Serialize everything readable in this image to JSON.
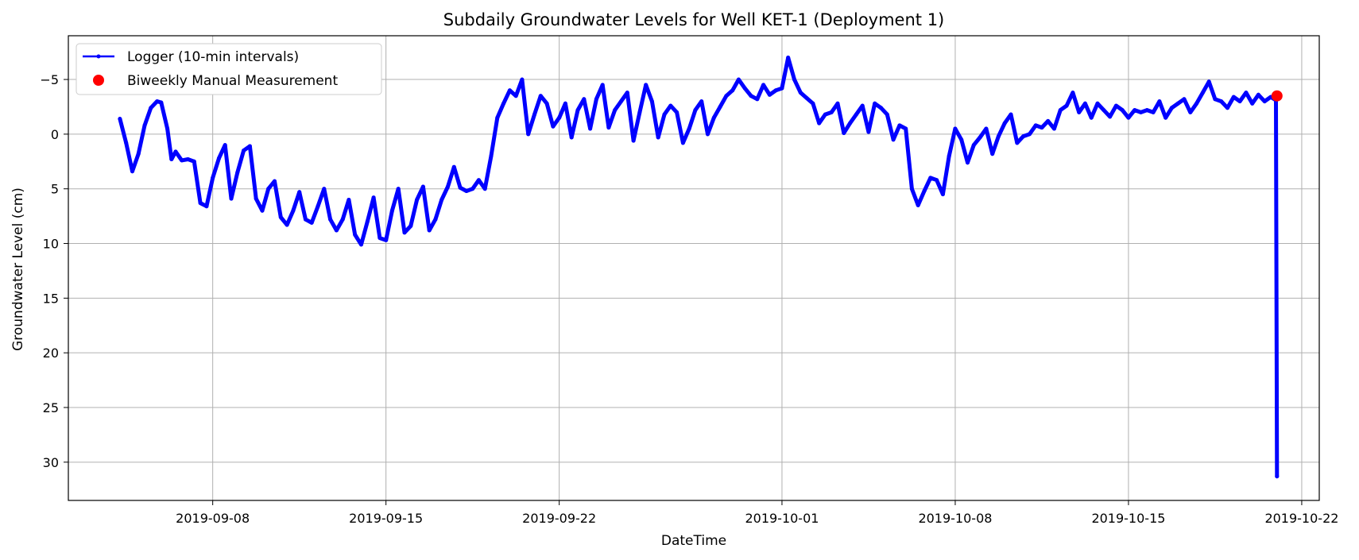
{
  "chart_data": {
    "type": "line",
    "title": "Subdaily Groundwater Levels for Well KET-1 (Deployment 1)",
    "xlabel": "DateTime",
    "ylabel": "Groundwater Level (cm)",
    "y_inverted": true,
    "ylim": [
      33.5,
      -9
    ],
    "xlim": [
      "2019-09-02T04:00",
      "2019-10-22T17:00"
    ],
    "x_ticks": [
      "2019-09-08",
      "2019-09-15",
      "2019-09-22",
      "2019-10-01",
      "2019-10-08",
      "2019-10-15",
      "2019-10-22"
    ],
    "y_ticks": [
      -5,
      0,
      5,
      10,
      15,
      20,
      25,
      30
    ],
    "grid": true,
    "legend_position": "top-left",
    "colors": {
      "logger": "#0000ff",
      "manual": "#ff0000"
    },
    "series": [
      {
        "name": "Logger (10-min intervals)",
        "style": "line-with-dot-markers",
        "color": "#0000ff",
        "points": [
          [
            "2019-09-04T06:00",
            -1.4
          ],
          [
            "2019-09-04T12:00",
            0.8
          ],
          [
            "2019-09-04T18:00",
            3.4
          ],
          [
            "2019-09-05T00:00",
            1.8
          ],
          [
            "2019-09-05T06:00",
            -0.8
          ],
          [
            "2019-09-05T12:00",
            -2.4
          ],
          [
            "2019-09-05T18:00",
            -3.0
          ],
          [
            "2019-09-05T22:00",
            -2.9
          ],
          [
            "2019-09-06T04:00",
            -0.5
          ],
          [
            "2019-09-06T08:00",
            2.3
          ],
          [
            "2019-09-06T12:00",
            1.6
          ],
          [
            "2019-09-06T18:00",
            2.4
          ],
          [
            "2019-09-07T00:00",
            2.3
          ],
          [
            "2019-09-07T06:00",
            2.5
          ],
          [
            "2019-09-07T12:00",
            6.3
          ],
          [
            "2019-09-07T18:00",
            6.6
          ],
          [
            "2019-09-08T00:00",
            4.0
          ],
          [
            "2019-09-08T06:00",
            2.2
          ],
          [
            "2019-09-08T12:00",
            1.0
          ],
          [
            "2019-09-08T18:00",
            5.9
          ],
          [
            "2019-09-09T00:00",
            3.5
          ],
          [
            "2019-09-09T06:00",
            1.5
          ],
          [
            "2019-09-09T12:00",
            1.1
          ],
          [
            "2019-09-09T18:00",
            5.9
          ],
          [
            "2019-09-10T00:00",
            7.0
          ],
          [
            "2019-09-10T06:00",
            5.0
          ],
          [
            "2019-09-10T12:00",
            4.3
          ],
          [
            "2019-09-10T18:00",
            7.6
          ],
          [
            "2019-09-11T00:00",
            8.3
          ],
          [
            "2019-09-11T06:00",
            7.0
          ],
          [
            "2019-09-11T12:00",
            5.3
          ],
          [
            "2019-09-11T18:00",
            7.8
          ],
          [
            "2019-09-12T00:00",
            8.1
          ],
          [
            "2019-09-12T06:00",
            6.6
          ],
          [
            "2019-09-12T12:00",
            5.0
          ],
          [
            "2019-09-12T18:00",
            7.8
          ],
          [
            "2019-09-13T00:00",
            8.8
          ],
          [
            "2019-09-13T06:00",
            7.8
          ],
          [
            "2019-09-13T12:00",
            6.0
          ],
          [
            "2019-09-13T18:00",
            9.2
          ],
          [
            "2019-09-14T00:00",
            10.1
          ],
          [
            "2019-09-14T06:00",
            8.0
          ],
          [
            "2019-09-14T12:00",
            5.8
          ],
          [
            "2019-09-14T18:00",
            9.5
          ],
          [
            "2019-09-15T00:00",
            9.7
          ],
          [
            "2019-09-15T06:00",
            7.0
          ],
          [
            "2019-09-15T12:00",
            5.0
          ],
          [
            "2019-09-15T18:00",
            9.0
          ],
          [
            "2019-09-16T00:00",
            8.4
          ],
          [
            "2019-09-16T06:00",
            6.0
          ],
          [
            "2019-09-16T12:00",
            4.8
          ],
          [
            "2019-09-16T18:00",
            8.8
          ],
          [
            "2019-09-17T00:00",
            7.8
          ],
          [
            "2019-09-17T06:00",
            6.0
          ],
          [
            "2019-09-17T12:00",
            4.8
          ],
          [
            "2019-09-17T18:00",
            3.0
          ],
          [
            "2019-09-18T00:00",
            4.9
          ],
          [
            "2019-09-18T06:00",
            5.2
          ],
          [
            "2019-09-18T12:00",
            5.0
          ],
          [
            "2019-09-18T18:00",
            4.2
          ],
          [
            "2019-09-19T00:00",
            5.0
          ],
          [
            "2019-09-19T06:00",
            2.0
          ],
          [
            "2019-09-19T12:00",
            -1.5
          ],
          [
            "2019-09-19T18:00",
            -2.8
          ],
          [
            "2019-09-20T00:00",
            -4.0
          ],
          [
            "2019-09-20T06:00",
            -3.5
          ],
          [
            "2019-09-20T12:00",
            -5.0
          ],
          [
            "2019-09-20T18:00",
            0.0
          ],
          [
            "2019-09-21T00:00",
            -1.8
          ],
          [
            "2019-09-21T06:00",
            -3.5
          ],
          [
            "2019-09-21T12:00",
            -2.8
          ],
          [
            "2019-09-21T18:00",
            -0.7
          ],
          [
            "2019-09-22T00:00",
            -1.5
          ],
          [
            "2019-09-22T06:00",
            -2.8
          ],
          [
            "2019-09-22T12:00",
            0.3
          ],
          [
            "2019-09-22T18:00",
            -2.2
          ],
          [
            "2019-09-23T00:00",
            -3.2
          ],
          [
            "2019-09-23T06:00",
            -0.5
          ],
          [
            "2019-09-23T12:00",
            -3.2
          ],
          [
            "2019-09-23T18:00",
            -4.5
          ],
          [
            "2019-09-24T00:00",
            -0.6
          ],
          [
            "2019-09-24T06:00",
            -2.2
          ],
          [
            "2019-09-24T12:00",
            -3.0
          ],
          [
            "2019-09-24T18:00",
            -3.8
          ],
          [
            "2019-09-25T00:00",
            0.6
          ],
          [
            "2019-09-25T06:00",
            -2.0
          ],
          [
            "2019-09-25T12:00",
            -4.5
          ],
          [
            "2019-09-25T18:00",
            -3.0
          ],
          [
            "2019-09-26T00:00",
            0.3
          ],
          [
            "2019-09-26T06:00",
            -1.8
          ],
          [
            "2019-09-26T12:00",
            -2.6
          ],
          [
            "2019-09-26T18:00",
            -2.0
          ],
          [
            "2019-09-27T00:00",
            0.8
          ],
          [
            "2019-09-27T06:00",
            -0.5
          ],
          [
            "2019-09-27T12:00",
            -2.2
          ],
          [
            "2019-09-27T18:00",
            -3.0
          ],
          [
            "2019-09-28T00:00",
            0.0
          ],
          [
            "2019-09-28T06:00",
            -1.5
          ],
          [
            "2019-09-28T12:00",
            -2.5
          ],
          [
            "2019-09-28T18:00",
            -3.5
          ],
          [
            "2019-09-29T00:00",
            -4.0
          ],
          [
            "2019-09-29T06:00",
            -5.0
          ],
          [
            "2019-09-29T12:00",
            -4.2
          ],
          [
            "2019-09-29T18:00",
            -3.5
          ],
          [
            "2019-09-30T00:00",
            -3.2
          ],
          [
            "2019-09-30T06:00",
            -4.5
          ],
          [
            "2019-09-30T12:00",
            -3.6
          ],
          [
            "2019-09-30T18:00",
            -4.0
          ],
          [
            "2019-10-01T00:00",
            -4.2
          ],
          [
            "2019-10-01T06:00",
            -7.0
          ],
          [
            "2019-10-01T12:00",
            -5.0
          ],
          [
            "2019-10-01T18:00",
            -3.8
          ],
          [
            "2019-10-02T00:00",
            -3.3
          ],
          [
            "2019-10-02T06:00",
            -2.8
          ],
          [
            "2019-10-02T12:00",
            -1.0
          ],
          [
            "2019-10-02T18:00",
            -1.8
          ],
          [
            "2019-10-03T00:00",
            -2.0
          ],
          [
            "2019-10-03T06:00",
            -2.8
          ],
          [
            "2019-10-03T12:00",
            -0.1
          ],
          [
            "2019-10-03T18:00",
            -1.0
          ],
          [
            "2019-10-04T00:00",
            -1.8
          ],
          [
            "2019-10-04T06:00",
            -2.6
          ],
          [
            "2019-10-04T12:00",
            -0.2
          ],
          [
            "2019-10-04T18:00",
            -2.8
          ],
          [
            "2019-10-05T00:00",
            -2.4
          ],
          [
            "2019-10-05T06:00",
            -1.8
          ],
          [
            "2019-10-05T12:00",
            0.5
          ],
          [
            "2019-10-05T18:00",
            -0.8
          ],
          [
            "2019-10-06T00:00",
            -0.5
          ],
          [
            "2019-10-06T06:00",
            5.0
          ],
          [
            "2019-10-06T12:00",
            6.5
          ],
          [
            "2019-10-06T18:00",
            5.2
          ],
          [
            "2019-10-07T00:00",
            4.0
          ],
          [
            "2019-10-07T06:00",
            4.2
          ],
          [
            "2019-10-07T12:00",
            5.5
          ],
          [
            "2019-10-07T18:00",
            2.0
          ],
          [
            "2019-10-08T00:00",
            -0.5
          ],
          [
            "2019-10-08T06:00",
            0.5
          ],
          [
            "2019-10-08T12:00",
            2.6
          ],
          [
            "2019-10-08T18:00",
            1.0
          ],
          [
            "2019-10-09T00:00",
            0.3
          ],
          [
            "2019-10-09T06:00",
            -0.5
          ],
          [
            "2019-10-09T12:00",
            1.8
          ],
          [
            "2019-10-09T18:00",
            0.2
          ],
          [
            "2019-10-10T00:00",
            -1.0
          ],
          [
            "2019-10-10T06:00",
            -1.8
          ],
          [
            "2019-10-10T12:00",
            0.8
          ],
          [
            "2019-10-10T18:00",
            0.2
          ],
          [
            "2019-10-11T00:00",
            0.0
          ],
          [
            "2019-10-11T06:00",
            -0.8
          ],
          [
            "2019-10-11T12:00",
            -0.6
          ],
          [
            "2019-10-11T18:00",
            -1.2
          ],
          [
            "2019-10-12T00:00",
            -0.5
          ],
          [
            "2019-10-12T06:00",
            -2.2
          ],
          [
            "2019-10-12T12:00",
            -2.6
          ],
          [
            "2019-10-12T18:00",
            -3.8
          ],
          [
            "2019-10-13T00:00",
            -2.0
          ],
          [
            "2019-10-13T06:00",
            -2.8
          ],
          [
            "2019-10-13T12:00",
            -1.5
          ],
          [
            "2019-10-13T18:00",
            -2.8
          ],
          [
            "2019-10-14T00:00",
            -2.2
          ],
          [
            "2019-10-14T06:00",
            -1.6
          ],
          [
            "2019-10-14T12:00",
            -2.6
          ],
          [
            "2019-10-14T18:00",
            -2.2
          ],
          [
            "2019-10-15T00:00",
            -1.5
          ],
          [
            "2019-10-15T06:00",
            -2.2
          ],
          [
            "2019-10-15T12:00",
            -2.0
          ],
          [
            "2019-10-15T18:00",
            -2.2
          ],
          [
            "2019-10-16T00:00",
            -2.0
          ],
          [
            "2019-10-16T06:00",
            -3.0
          ],
          [
            "2019-10-16T12:00",
            -1.5
          ],
          [
            "2019-10-16T18:00",
            -2.4
          ],
          [
            "2019-10-17T00:00",
            -2.8
          ],
          [
            "2019-10-17T06:00",
            -3.2
          ],
          [
            "2019-10-17T12:00",
            -2.0
          ],
          [
            "2019-10-17T18:00",
            -2.8
          ],
          [
            "2019-10-18T00:00",
            -3.8
          ],
          [
            "2019-10-18T06:00",
            -4.8
          ],
          [
            "2019-10-18T12:00",
            -3.2
          ],
          [
            "2019-10-18T18:00",
            -3.0
          ],
          [
            "2019-10-19T00:00",
            -2.4
          ],
          [
            "2019-10-19T06:00",
            -3.4
          ],
          [
            "2019-10-19T12:00",
            -3.0
          ],
          [
            "2019-10-19T18:00",
            -3.8
          ],
          [
            "2019-10-20T00:00",
            -2.8
          ],
          [
            "2019-10-20T06:00",
            -3.6
          ],
          [
            "2019-10-20T12:00",
            -3.0
          ],
          [
            "2019-10-20T18:00",
            -3.4
          ],
          [
            "2019-10-20T23:00",
            -3.1
          ],
          [
            "2019-10-21T00:00",
            31.3
          ]
        ]
      },
      {
        "name": "Biweekly Manual Measurement",
        "style": "scatter",
        "color": "#ff0000",
        "points": [
          [
            "2019-10-21T00:00",
            -3.5
          ]
        ]
      }
    ]
  }
}
